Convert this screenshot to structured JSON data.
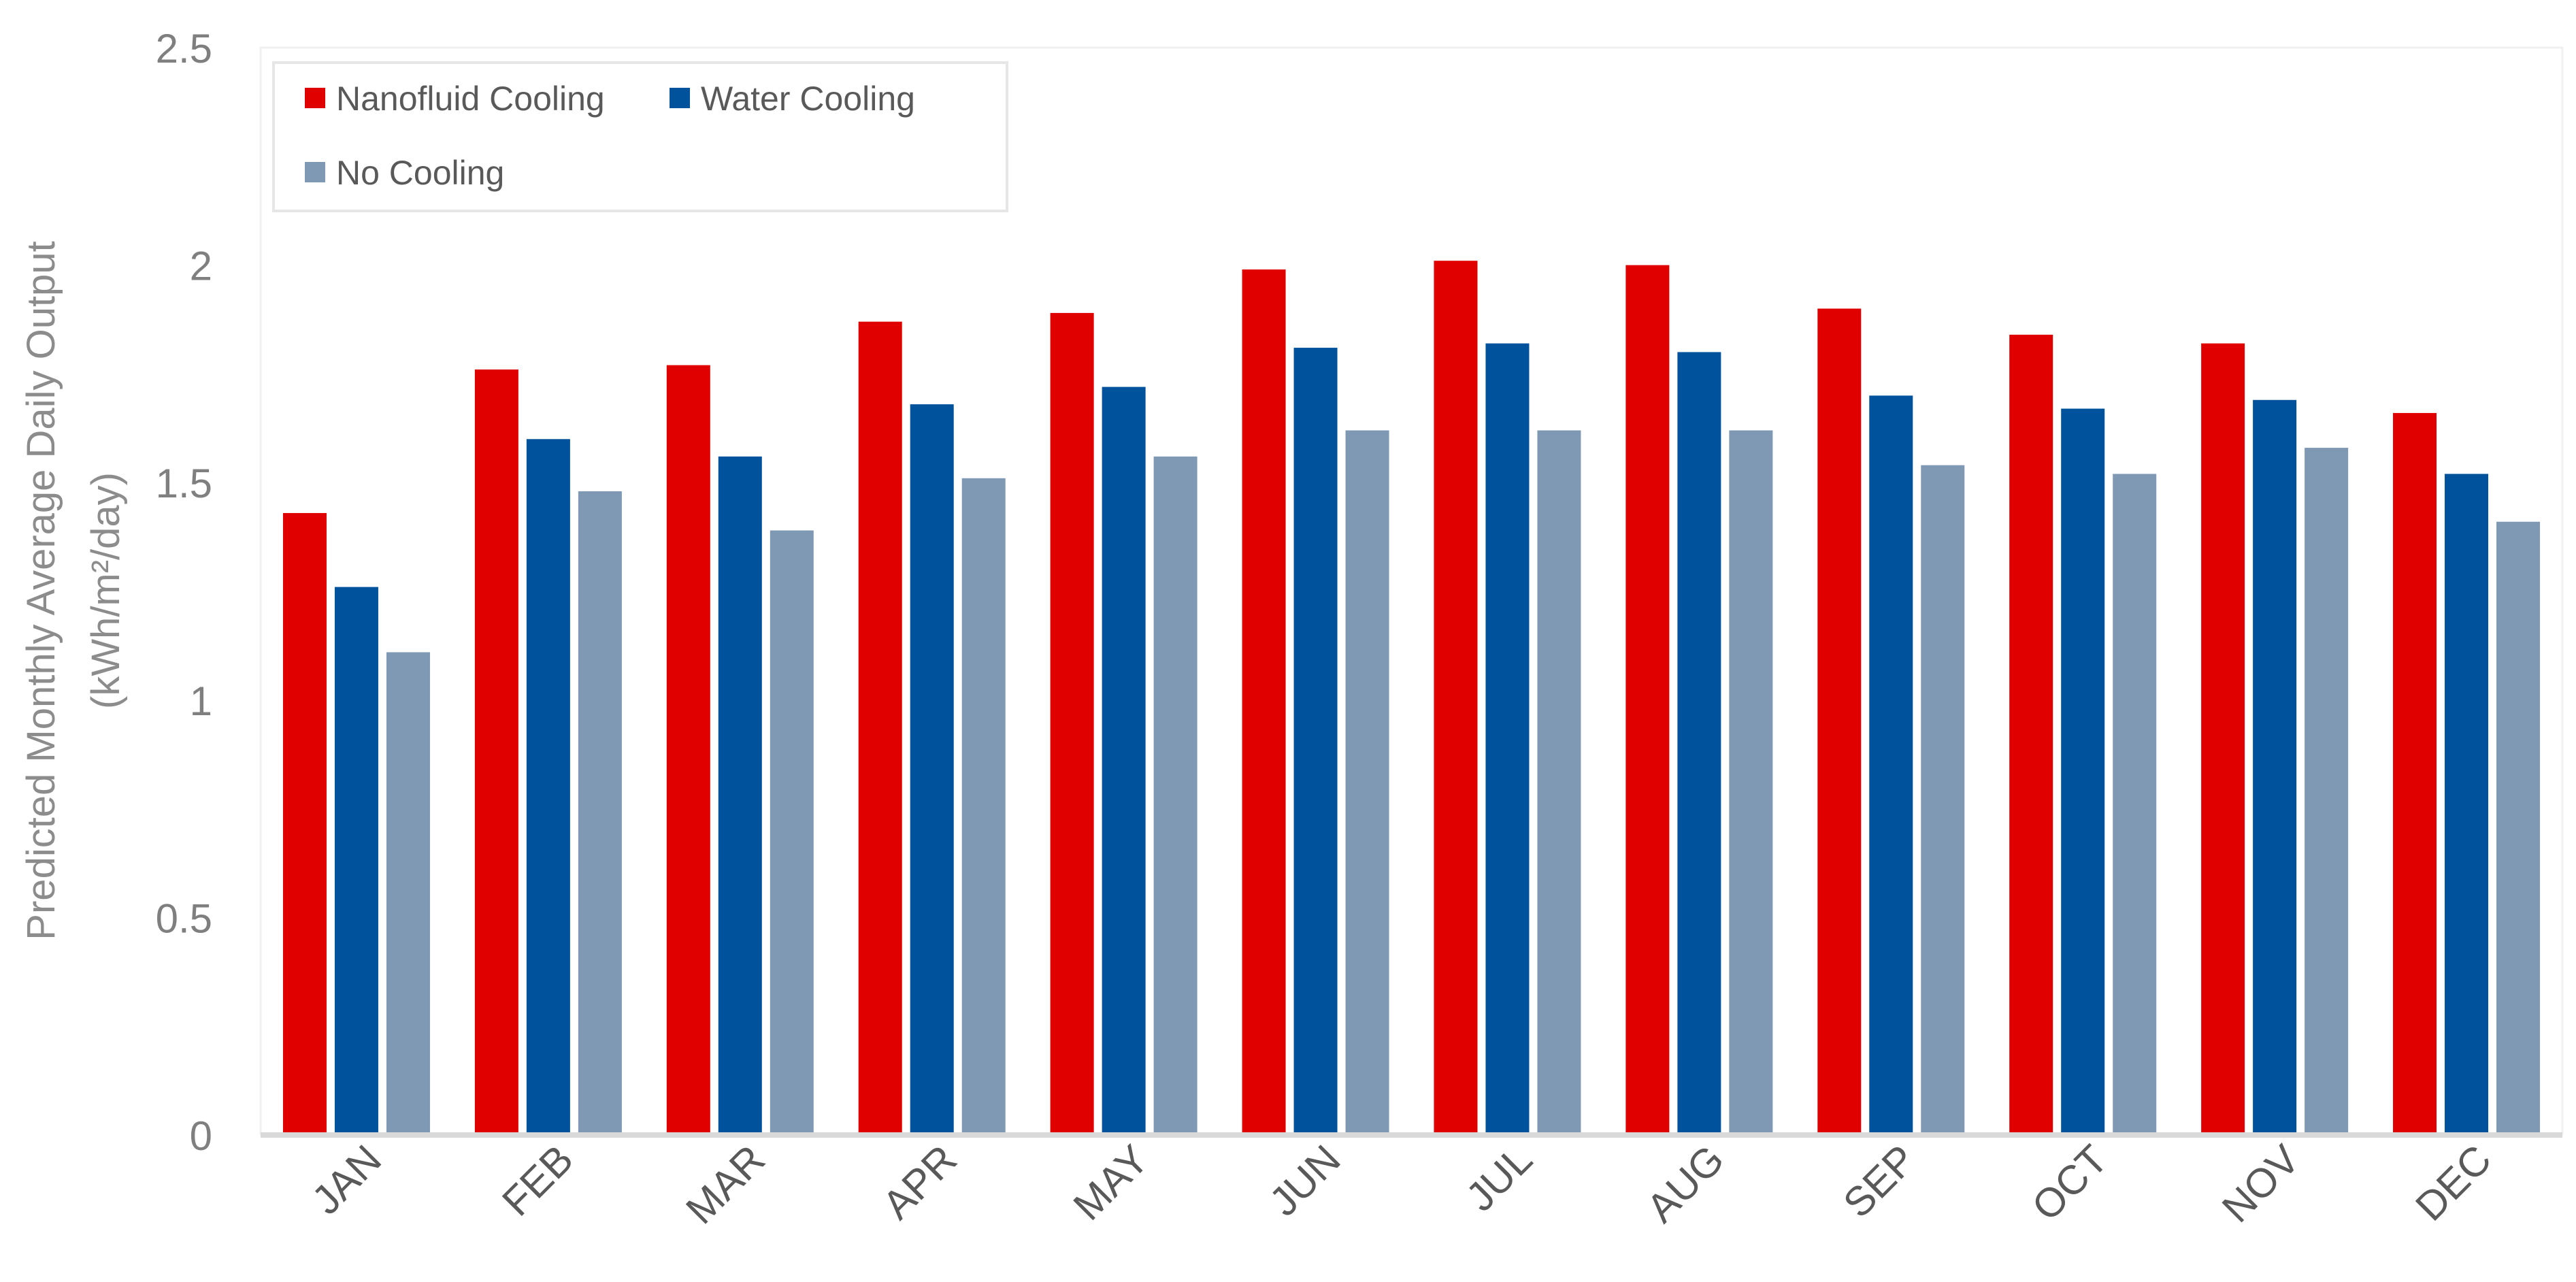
{
  "chart_data": {
    "type": "bar",
    "title": "",
    "xlabel": "",
    "ylabel": "Predicted Monthly Average Daily Output",
    "ylabel_unit": "(kWh/m²/day)",
    "categories": [
      "JAN",
      "FEB",
      "MAR",
      "APR",
      "MAY",
      "JUN",
      "JUL",
      "AUG",
      "SEP",
      "OCT",
      "NOV",
      "DEC"
    ],
    "series": [
      {
        "name": "Nanofluid Cooling",
        "color": "#e00000",
        "values": [
          1.43,
          1.76,
          1.77,
          1.87,
          1.89,
          1.99,
          2.01,
          2.0,
          1.9,
          1.84,
          1.82,
          1.66
        ]
      },
      {
        "name": "Water Cooling",
        "color": "#00529c",
        "values": [
          1.26,
          1.6,
          1.56,
          1.68,
          1.72,
          1.81,
          1.82,
          1.8,
          1.7,
          1.67,
          1.69,
          1.52
        ]
      },
      {
        "name": "No Cooling",
        "color": "#7f99b4",
        "values": [
          1.11,
          1.48,
          1.39,
          1.51,
          1.56,
          1.62,
          1.62,
          1.62,
          1.54,
          1.52,
          1.58,
          1.41
        ]
      }
    ],
    "ylim": [
      0,
      2.5
    ],
    "yticks": [
      "0",
      "0.5",
      "1",
      "1.5",
      "2",
      "2.5"
    ],
    "grid": false,
    "legend_position": "top-left"
  }
}
